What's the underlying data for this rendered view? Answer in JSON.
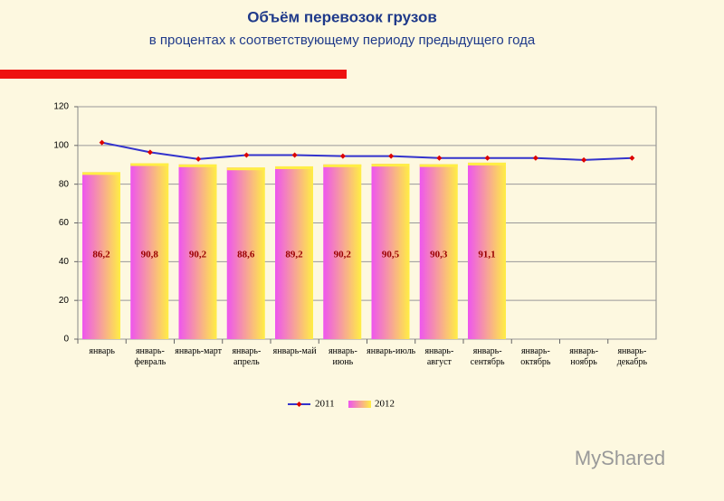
{
  "chart_data": {
    "type": "bar_line",
    "title": "Объём перевозок грузов",
    "subtitle": "в процентах к соответствующему периоду предыдущего года",
    "categories": [
      "январь",
      "январь-февраль",
      "январь-март",
      "январь-апрель",
      "январь-май",
      "январь-июнь",
      "январь-июль",
      "январь-август",
      "январь-сентябрь",
      "январь-октябрь",
      "январь-ноябрь",
      "январь-декабрь"
    ],
    "series": [
      {
        "name": "2011",
        "type": "line",
        "color": "#3333cc",
        "marker_color": "#dd0000",
        "values": [
          101.5,
          96.5,
          93,
          95,
          95,
          94.5,
          94.5,
          93.5,
          93.5,
          93.5,
          92.5,
          93.5
        ]
      },
      {
        "name": "2012",
        "type": "bar",
        "color": "#ee55ee",
        "color2": "#ffee44",
        "values": [
          86.2,
          90.8,
          90.2,
          88.6,
          89.2,
          90.2,
          90.5,
          90.3,
          91.1,
          null,
          null,
          null
        ],
        "value_labels": [
          "86,2",
          "90,8",
          "90,2",
          "88,6",
          "89,2",
          "90,2",
          "90,5",
          "90,3",
          "91,1",
          null,
          null,
          null
        ]
      }
    ],
    "ylim": [
      0,
      120
    ],
    "yticks": [
      0,
      20,
      40,
      60,
      80,
      100,
      120
    ],
    "grid": true,
    "legend": "bottom",
    "watermark": "MyShared"
  }
}
